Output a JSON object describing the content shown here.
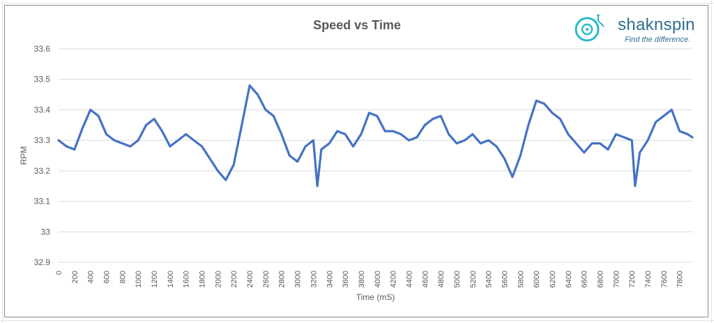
{
  "chart_data": {
    "type": "line",
    "title": "Speed vs Time",
    "xlabel": "Time (mS)",
    "ylabel": "RPM",
    "xlim": [
      0,
      7960
    ],
    "ylim": [
      32.9,
      33.6
    ],
    "yticks": [
      "33.6",
      "33.5",
      "33.4",
      "33.3",
      "33.2",
      "33.1",
      "33",
      "32.9"
    ],
    "xticks": [
      "0",
      "200",
      "400",
      "600",
      "800",
      "1000",
      "1200",
      "1400",
      "1600",
      "1800",
      "2000",
      "2200",
      "2400",
      "2600",
      "2800",
      "3000",
      "3200",
      "3400",
      "3600",
      "3800",
      "4000",
      "4200",
      "4400",
      "4600",
      "4800",
      "5000",
      "5200",
      "5400",
      "5600",
      "5800",
      "6000",
      "6200",
      "6400",
      "6600",
      "6800",
      "7000",
      "7200",
      "7400",
      "7600",
      "7800"
    ],
    "grid": true,
    "series": [
      {
        "color": "#4472c4",
        "x": [
          0,
          100,
          200,
          300,
          400,
          500,
          600,
          700,
          800,
          900,
          1000,
          1100,
          1200,
          1300,
          1400,
          1500,
          1600,
          1700,
          1800,
          1900,
          2000,
          2100,
          2200,
          2300,
          2400,
          2500,
          2600,
          2700,
          2800,
          2900,
          3000,
          3100,
          3200,
          3250,
          3300,
          3400,
          3500,
          3600,
          3700,
          3800,
          3900,
          4000,
          4100,
          4200,
          4300,
          4400,
          4500,
          4600,
          4700,
          4800,
          4900,
          5000,
          5100,
          5200,
          5300,
          5400,
          5500,
          5600,
          5700,
          5800,
          5900,
          6000,
          6100,
          6200,
          6300,
          6400,
          6500,
          6600,
          6700,
          6800,
          6900,
          7000,
          7100,
          7200,
          7240,
          7300,
          7400,
          7500,
          7600,
          7700,
          7800,
          7900,
          7960
        ],
        "values": [
          33.3,
          33.28,
          33.27,
          33.34,
          33.4,
          33.38,
          33.32,
          33.3,
          33.29,
          33.28,
          33.3,
          33.35,
          33.37,
          33.33,
          33.28,
          33.3,
          33.32,
          33.3,
          33.28,
          33.24,
          33.2,
          33.17,
          33.22,
          33.35,
          33.48,
          33.45,
          33.4,
          33.38,
          33.32,
          33.25,
          33.23,
          33.28,
          33.3,
          33.15,
          33.27,
          33.29,
          33.33,
          33.32,
          33.28,
          33.32,
          33.39,
          33.38,
          33.33,
          33.33,
          33.32,
          33.3,
          33.31,
          33.35,
          33.37,
          33.38,
          33.32,
          33.29,
          33.3,
          33.32,
          33.29,
          33.3,
          33.28,
          33.24,
          33.18,
          33.25,
          33.35,
          33.43,
          33.42,
          33.39,
          33.37,
          33.32,
          33.29,
          33.26,
          33.29,
          33.29,
          33.27,
          33.32,
          33.31,
          33.3,
          33.15,
          33.26,
          33.3,
          33.36,
          33.38,
          33.4,
          33.33,
          33.32,
          33.31
        ]
      }
    ]
  },
  "logo": {
    "name": "shaknspin",
    "tagline": "Find the difference."
  },
  "colors": {
    "series": "#4472c4",
    "grid": "#d9d9d9",
    "axis_text": "#595959",
    "logo": "#2f6f8f",
    "logo_ring": "#2bb7c8"
  }
}
